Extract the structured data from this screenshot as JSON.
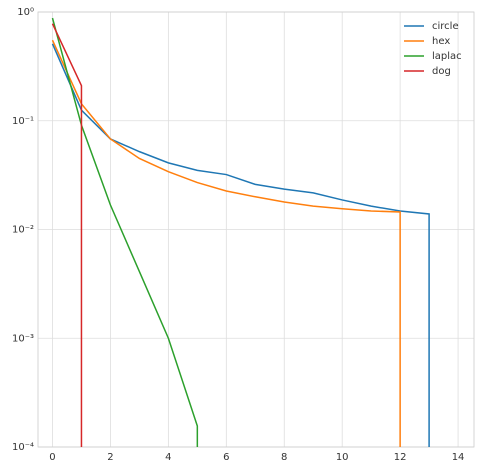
{
  "chart_data": {
    "type": "line",
    "log_y": true,
    "grid": true,
    "legend": "upper right",
    "xlim": [
      -0.5,
      14.55
    ],
    "ylim": [
      0.0001,
      1
    ],
    "xticks": [
      0,
      2,
      4,
      6,
      8,
      10,
      12,
      14
    ],
    "yticks": [
      {
        "value": 0.0001,
        "label": "10⁻⁴"
      },
      {
        "value": 0.001,
        "label": "10⁻³"
      },
      {
        "value": 0.01,
        "label": "10⁻²"
      },
      {
        "value": 0.1,
        "label": "10⁻¹"
      },
      {
        "value": 1,
        "label": "10⁰"
      }
    ],
    "series": [
      {
        "name": "circle",
        "color": "#1f77b4",
        "x": [
          0,
          1,
          2,
          3,
          4,
          5,
          6,
          7,
          8,
          9,
          10,
          11,
          12,
          13,
          14
        ],
        "values": [
          0.51,
          0.125,
          0.068,
          0.052,
          0.041,
          0.035,
          0.032,
          0.026,
          0.0235,
          0.0217,
          0.0187,
          0.0164,
          0.0148,
          0.0139,
          0
        ]
      },
      {
        "name": "hex",
        "color": "#ff7f0e",
        "x": [
          0,
          1,
          2,
          3,
          4,
          5,
          6,
          7,
          8,
          9,
          10,
          11,
          12,
          13
        ],
        "values": [
          0.55,
          0.143,
          0.068,
          0.045,
          0.034,
          0.027,
          0.0226,
          0.02,
          0.0179,
          0.0164,
          0.0155,
          0.0148,
          0.0145,
          0
        ]
      },
      {
        "name": "laplac",
        "color": "#2ca02c",
        "x": [
          0,
          1,
          2,
          3,
          4,
          5,
          6
        ],
        "values": [
          0.88,
          0.091,
          0.0168,
          0.0041,
          0.001,
          0.000156,
          0
        ]
      },
      {
        "name": "dog",
        "color": "#d62728",
        "x": [
          0,
          1,
          2
        ],
        "values": [
          0.78,
          0.21,
          0
        ]
      }
    ]
  }
}
